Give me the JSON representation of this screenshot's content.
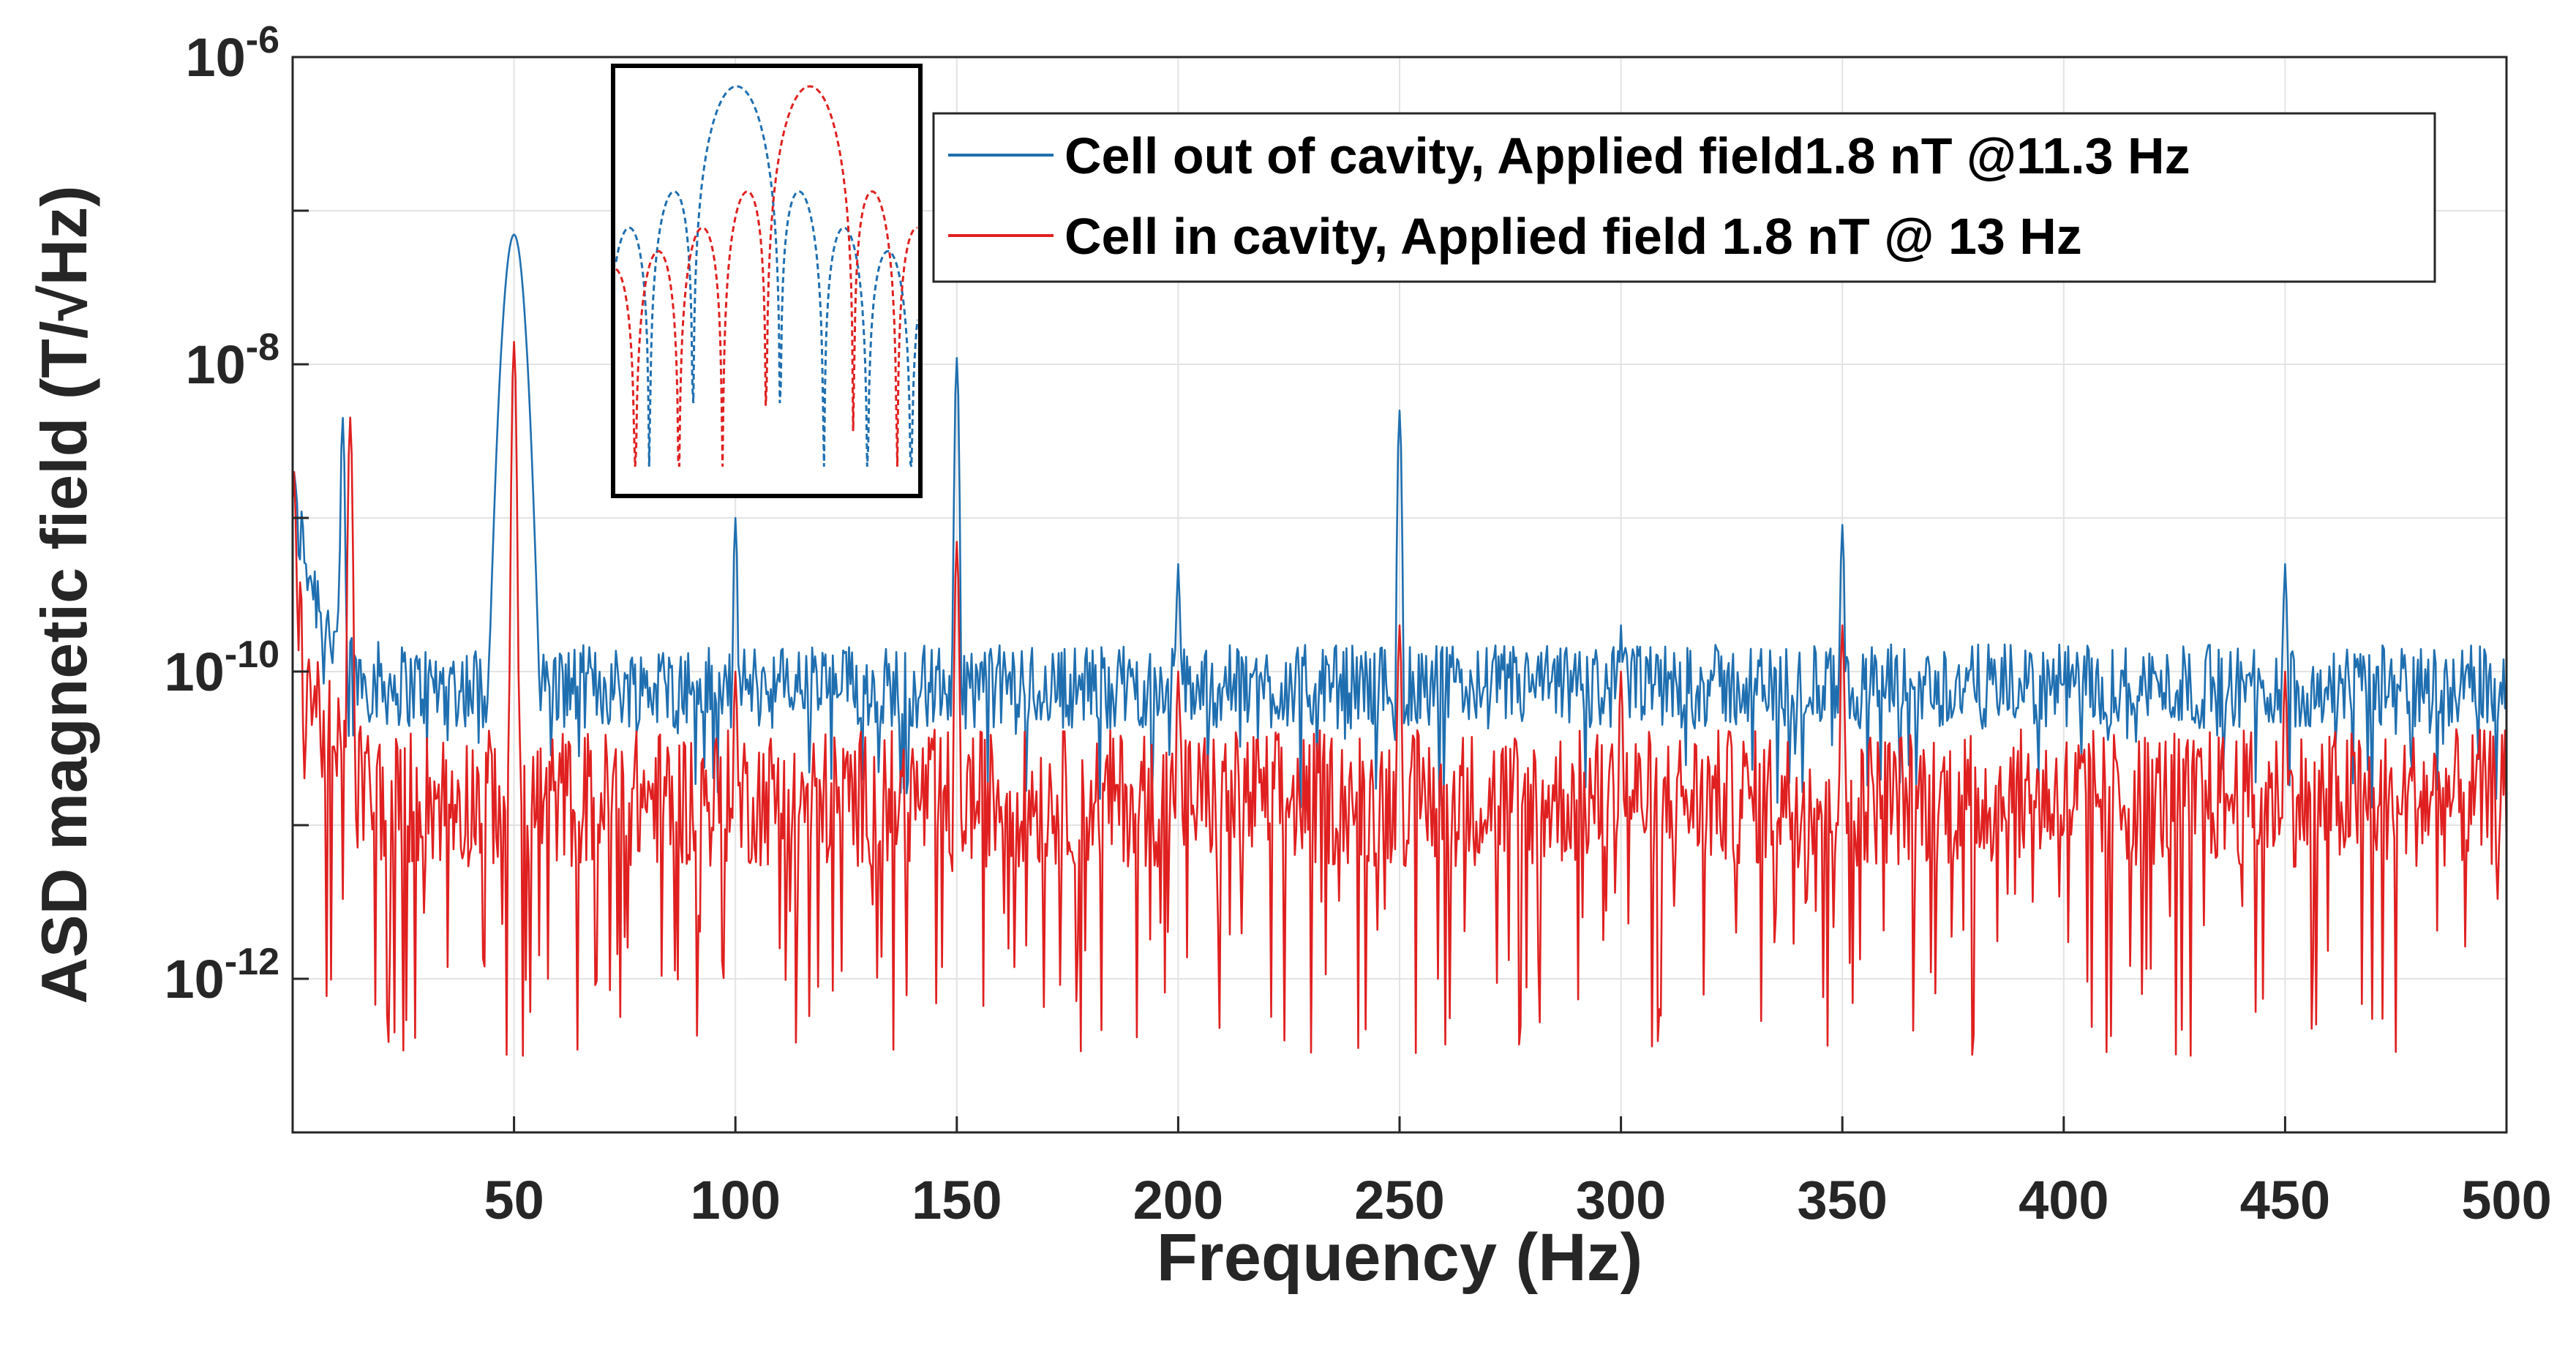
{
  "chart_data": {
    "type": "line",
    "title": "",
    "xlabel": "Frequency (Hz)",
    "ylabel": "ASD magnetic field (T/√Hz)",
    "xlim": [
      0,
      500
    ],
    "ylim": [
      1e-13,
      1e-06
    ],
    "yscale": "log",
    "grid": true,
    "x_ticks": [
      50,
      100,
      150,
      200,
      250,
      300,
      350,
      400,
      450,
      500
    ],
    "x_tick_labels": [
      "50",
      "100",
      "150",
      "200",
      "250",
      "300",
      "350",
      "400",
      "450",
      "500"
    ],
    "y_ticks": [
      {
        "value": 1e-06,
        "base": "10",
        "exp": "-6"
      },
      {
        "value": 1e-08,
        "base": "10",
        "exp": "-8"
      },
      {
        "value": 1e-10,
        "base": "10",
        "exp": "-10"
      },
      {
        "value": 1e-12,
        "base": "10",
        "exp": "-12"
      }
    ],
    "legend_position": "top-right",
    "series": [
      {
        "name": "Cell out of cavity, Applied field1.8 nT @11.3 Hz",
        "color": "#1f6fb0",
        "baseline": 8e-11,
        "peaks": [
          {
            "x": 0.3,
            "y": 2e-09
          },
          {
            "x": 11.3,
            "y": 4.5e-09
          },
          {
            "x": 50,
            "y": 7e-08
          },
          {
            "x": 100,
            "y": 1e-09
          },
          {
            "x": 150,
            "y": 1.1e-08
          },
          {
            "x": 200,
            "y": 5e-10
          },
          {
            "x": 250,
            "y": 5e-09
          },
          {
            "x": 300,
            "y": 2e-10
          },
          {
            "x": 350,
            "y": 9e-10
          },
          {
            "x": 450,
            "y": 5e-10
          }
        ]
      },
      {
        "name": "Cell in cavity, Applied field 1.8 nT @ 13 Hz",
        "color": "#e02020",
        "baseline": 1.5e-11,
        "peaks": [
          {
            "x": 0.3,
            "y": 2e-09
          },
          {
            "x": 13,
            "y": 4.5e-09
          },
          {
            "x": 50,
            "y": 1.4e-08
          },
          {
            "x": 100,
            "y": 1e-10
          },
          {
            "x": 150,
            "y": 7e-10
          },
          {
            "x": 200,
            "y": 1e-10
          },
          {
            "x": 250,
            "y": 2e-10
          },
          {
            "x": 300,
            "y": 1e-10
          },
          {
            "x": 350,
            "y": 2e-10
          },
          {
            "x": 450,
            "y": 1e-10
          }
        ]
      }
    ],
    "inset": {
      "description": "zoom on applied-field peaks",
      "series": [
        {
          "name": "Cell out of cavity",
          "color": "#1f6fb0",
          "peak_x": 11.3
        },
        {
          "name": "Cell in cavity",
          "color": "#e02020",
          "peak_x": 13
        }
      ]
    }
  }
}
